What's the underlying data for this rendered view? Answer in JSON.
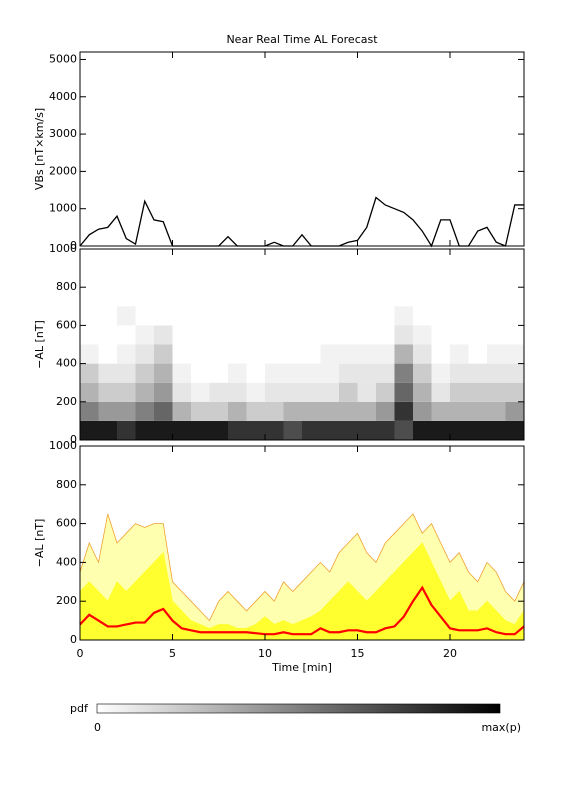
{
  "chart_data": [
    {
      "type": "line",
      "title": "Near Real Time AL Forecast",
      "ylabel": "VBs [nT×km/s]",
      "xlim": [
        0,
        24
      ],
      "ylim": [
        0,
        5200
      ],
      "yticks": [
        0,
        1000,
        2000,
        3000,
        4000,
        5000
      ],
      "x": [
        0,
        0.5,
        1,
        1.5,
        2,
        2.5,
        3,
        3.5,
        4,
        4.5,
        5,
        5.5,
        6,
        6.5,
        7,
        7.5,
        8,
        8.5,
        9,
        9.5,
        10,
        10.5,
        11,
        11.5,
        12,
        12.5,
        13,
        13.5,
        14,
        14.5,
        15,
        15.5,
        16,
        16.5,
        17,
        17.5,
        18,
        18.5,
        19,
        19.5,
        20,
        20.5,
        21,
        21.5,
        22,
        22.5,
        23,
        23.5,
        24
      ],
      "series": [
        {
          "color": "#000000",
          "values": [
            0,
            300,
            450,
            500,
            800,
            200,
            50,
            1200,
            700,
            650,
            0,
            0,
            0,
            0,
            0,
            0,
            250,
            0,
            0,
            0,
            0,
            100,
            0,
            0,
            300,
            0,
            0,
            0,
            0,
            100,
            150,
            500,
            1300,
            1100,
            1000,
            900,
            700,
            400,
            0,
            700,
            700,
            0,
            0,
            400,
            500,
            100,
            0,
            1100,
            1100
          ]
        }
      ]
    },
    {
      "type": "heatmap",
      "ylabel": "−AL [nT]",
      "xlim": [
        0,
        24
      ],
      "ylim": [
        0,
        1000
      ],
      "yticks": [
        0,
        200,
        400,
        600,
        800,
        1000
      ],
      "x_edges": [
        0,
        1,
        2,
        3,
        4,
        5,
        6,
        7,
        8,
        9,
        10,
        11,
        12,
        13,
        14,
        15,
        16,
        17,
        18,
        19,
        20,
        21,
        22,
        23,
        24
      ],
      "y_edges": [
        0,
        100,
        200,
        300,
        400,
        500,
        600,
        700
      ],
      "colormap": [
        "#ffffff",
        "#000000"
      ],
      "z": [
        [
          0.9,
          0.5,
          0.3,
          0.2,
          0.05,
          0,
          0
        ],
        [
          0.9,
          0.4,
          0.2,
          0.1,
          0,
          0,
          0
        ],
        [
          0.8,
          0.4,
          0.2,
          0.1,
          0.05,
          0,
          0.05
        ],
        [
          0.9,
          0.5,
          0.3,
          0.2,
          0.1,
          0.05,
          0
        ],
        [
          0.9,
          0.6,
          0.4,
          0.3,
          0.2,
          0.1,
          0
        ],
        [
          0.9,
          0.3,
          0.1,
          0.05,
          0,
          0,
          0
        ],
        [
          0.9,
          0.2,
          0.05,
          0,
          0,
          0,
          0
        ],
        [
          0.9,
          0.2,
          0.1,
          0,
          0,
          0,
          0
        ],
        [
          0.8,
          0.3,
          0.1,
          0.05,
          0,
          0,
          0
        ],
        [
          0.8,
          0.2,
          0.05,
          0,
          0,
          0,
          0
        ],
        [
          0.8,
          0.2,
          0.1,
          0.05,
          0,
          0,
          0
        ],
        [
          0.7,
          0.3,
          0.1,
          0.05,
          0,
          0,
          0
        ],
        [
          0.8,
          0.3,
          0.1,
          0.05,
          0,
          0,
          0
        ],
        [
          0.8,
          0.3,
          0.1,
          0.05,
          0.05,
          0,
          0
        ],
        [
          0.8,
          0.3,
          0.2,
          0.1,
          0.05,
          0,
          0
        ],
        [
          0.8,
          0.3,
          0.1,
          0.1,
          0.05,
          0,
          0
        ],
        [
          0.8,
          0.4,
          0.2,
          0.1,
          0.05,
          0,
          0
        ],
        [
          0.7,
          0.8,
          0.6,
          0.5,
          0.3,
          0.1,
          0.05
        ],
        [
          0.9,
          0.4,
          0.3,
          0.2,
          0.1,
          0.05,
          0
        ],
        [
          0.9,
          0.3,
          0.1,
          0.05,
          0,
          0,
          0
        ],
        [
          0.9,
          0.3,
          0.2,
          0.1,
          0.05,
          0,
          0
        ],
        [
          0.9,
          0.3,
          0.2,
          0.1,
          0,
          0,
          0
        ],
        [
          0.9,
          0.3,
          0.2,
          0.1,
          0.05,
          0,
          0
        ],
        [
          0.9,
          0.4,
          0.2,
          0.1,
          0.05,
          0,
          0
        ]
      ],
      "colorbar": {
        "label": "pdf",
        "min_label": "0",
        "max_label": "max(p)"
      }
    },
    {
      "type": "band",
      "ylabel": "−AL [nT]",
      "xlabel": "Time [min]",
      "xlim": [
        0,
        24
      ],
      "ylim": [
        0,
        1000
      ],
      "yticks": [
        0,
        200,
        400,
        600,
        800,
        1000
      ],
      "xticks": [
        0,
        5,
        10,
        15,
        20
      ],
      "x": [
        0,
        0.5,
        1,
        1.5,
        2,
        2.5,
        3,
        3.5,
        4,
        4.5,
        5,
        5.5,
        6,
        6.5,
        7,
        7.5,
        8,
        8.5,
        9,
        9.5,
        10,
        10.5,
        11,
        11.5,
        12,
        12.5,
        13,
        13.5,
        14,
        14.5,
        15,
        15.5,
        16,
        16.5,
        17,
        17.5,
        18,
        18.5,
        19,
        19.5,
        20,
        20.5,
        21,
        21.5,
        22,
        22.5,
        23,
        23.5,
        24
      ],
      "series": [
        {
          "style": "area",
          "color": "#f0a030",
          "fill": "#ffffb0",
          "values": [
            350,
            500,
            400,
            650,
            500,
            550,
            600,
            580,
            600,
            600,
            300,
            250,
            200,
            150,
            100,
            200,
            250,
            200,
            150,
            200,
            250,
            200,
            300,
            250,
            300,
            350,
            400,
            350,
            450,
            500,
            550,
            450,
            400,
            500,
            550,
            600,
            650,
            550,
            600,
            500,
            400,
            450,
            350,
            300,
            400,
            350,
            250,
            200,
            300
          ]
        },
        {
          "style": "area",
          "color": "#ffff30",
          "fill": "#ffff30",
          "values": [
            250,
            300,
            250,
            200,
            300,
            250,
            300,
            350,
            400,
            450,
            200,
            150,
            100,
            80,
            60,
            80,
            80,
            60,
            60,
            80,
            120,
            80,
            100,
            80,
            100,
            120,
            150,
            200,
            250,
            300,
            250,
            200,
            250,
            300,
            350,
            400,
            450,
            500,
            400,
            300,
            200,
            250,
            150,
            150,
            200,
            150,
            100,
            80,
            150
          ]
        },
        {
          "style": "line",
          "color": "#ff0000",
          "values": [
            80,
            130,
            100,
            70,
            70,
            80,
            90,
            90,
            140,
            160,
            100,
            60,
            50,
            40,
            40,
            40,
            40,
            40,
            40,
            35,
            30,
            30,
            40,
            30,
            30,
            30,
            60,
            40,
            40,
            50,
            50,
            40,
            40,
            60,
            70,
            120,
            200,
            270,
            180,
            120,
            60,
            50,
            50,
            50,
            60,
            40,
            30,
            30,
            70
          ]
        }
      ]
    }
  ]
}
